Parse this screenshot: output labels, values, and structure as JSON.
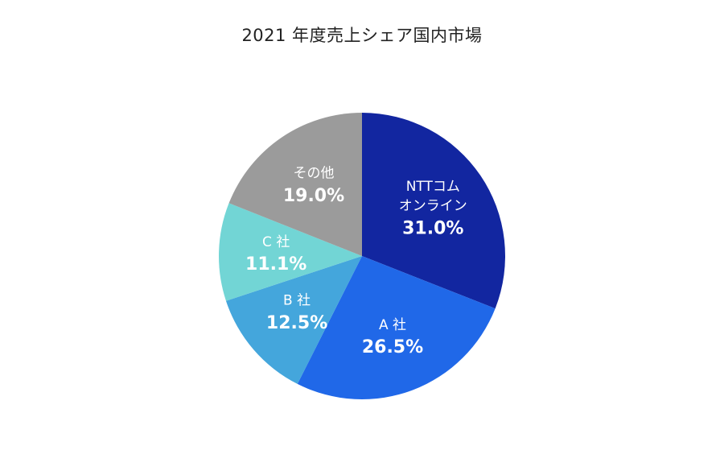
{
  "chart_data": {
    "type": "pie",
    "title": "2021 年度売上シェア国内市場",
    "unit": "%",
    "start": "12 o'clock",
    "direction": "clockwise",
    "slices": [
      {
        "label_lines": [
          "NTTコム",
          "オンライン"
        ],
        "value": 31.0,
        "value_label": "31.0%",
        "color": "#1226a0"
      },
      {
        "label_lines": [
          "A 社"
        ],
        "value": 26.5,
        "value_label": "26.5%",
        "color": "#2068e8"
      },
      {
        "label_lines": [
          "B 社"
        ],
        "value": 12.5,
        "value_label": "12.5%",
        "color": "#44a6dc"
      },
      {
        "label_lines": [
          "C 社"
        ],
        "value": 11.1,
        "value_label": "11.1%",
        "color": "#72d5d5"
      },
      {
        "label_lines": [
          "その他"
        ],
        "value": 19.0,
        "value_label": "19.0%",
        "color": "#9b9b9b"
      }
    ]
  }
}
